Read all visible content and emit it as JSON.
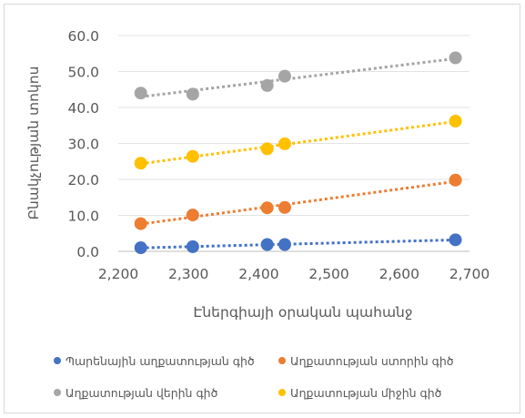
{
  "chart_data": {
    "type": "scatter",
    "xlabel": "Էներգիայի օրական պահանջ",
    "ylabel": "Բնակչության տոկոս",
    "xlim": [
      2200,
      2700
    ],
    "ylim": [
      0,
      60
    ],
    "x_ticks": [
      "2,200",
      "2,300",
      "2,400",
      "2,500",
      "2,600",
      "2,700"
    ],
    "y_ticks": [
      "0.0",
      "10.0",
      "20.0",
      "30.0",
      "40.0",
      "50.0",
      "60.0"
    ],
    "grid": "horizontal",
    "trendline": "linear, dotted",
    "legend_position": "bottom",
    "x": [
      2232,
      2306,
      2412,
      2437,
      2680
    ],
    "series": [
      {
        "name": "Պարենային աղքատության գիծ",
        "color": "#4472c4",
        "values": [
          1.0,
          1.3,
          1.9,
          1.9,
          3.2
        ]
      },
      {
        "name": "Աղքատության ստորին գիծ",
        "color": "#ed7d31",
        "values": [
          7.7,
          10.1,
          12.1,
          12.2,
          19.8
        ]
      },
      {
        "name": "Աղքատության վերին գիծ",
        "color": "#a5a5a5",
        "values": [
          44.0,
          43.7,
          46.1,
          48.7,
          53.8
        ]
      },
      {
        "name": "Աղքատության միջին գիծ",
        "color": "#ffc000",
        "values": [
          24.5,
          26.4,
          28.5,
          29.9,
          36.2
        ]
      }
    ]
  }
}
